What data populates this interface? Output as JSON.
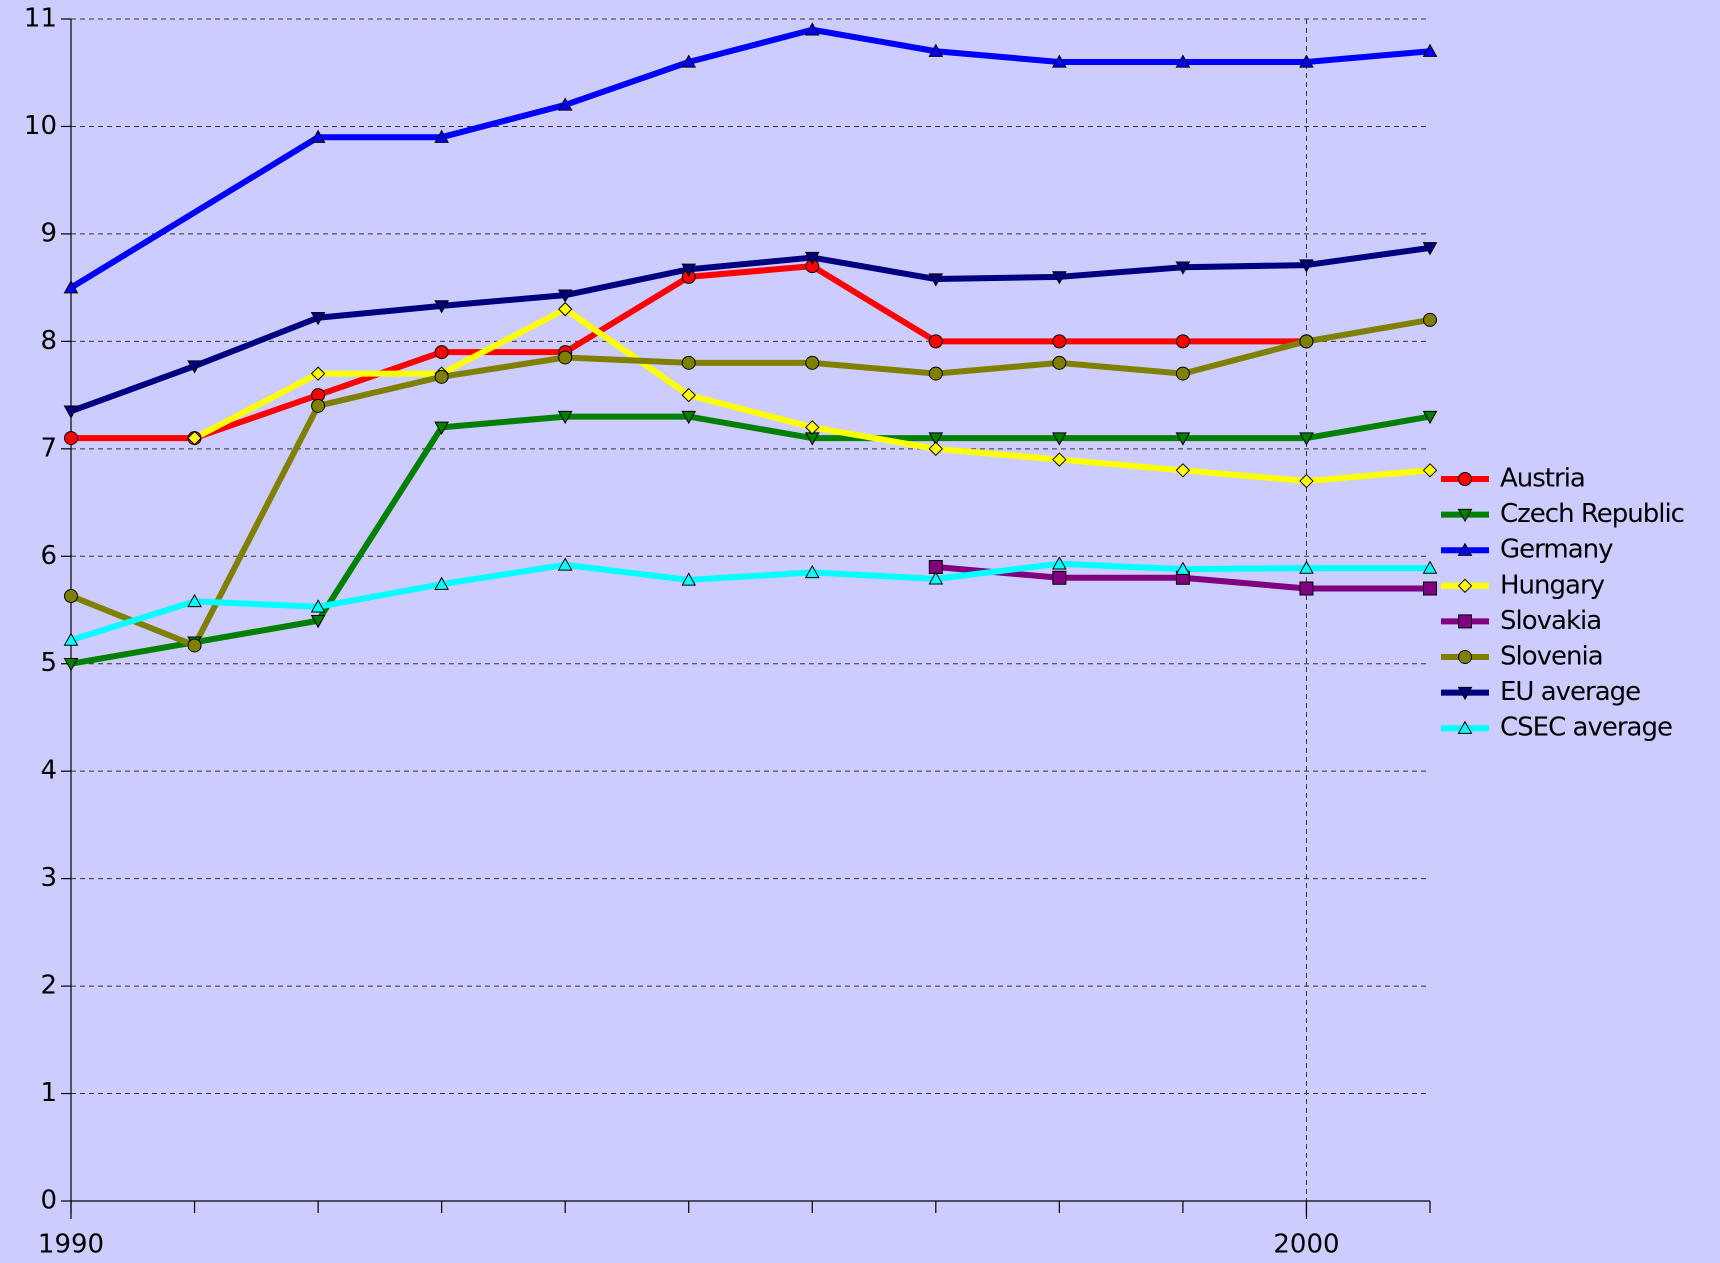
{
  "chart_data": {
    "type": "line",
    "x": [
      1990,
      1991,
      1992,
      1993,
      1994,
      1995,
      1996,
      1997,
      1998,
      1999,
      2000,
      2001
    ],
    "xlim": [
      1990,
      2001
    ],
    "xticks": [
      1990,
      2000
    ],
    "xminorticks": [
      1990,
      1991,
      1992,
      1993,
      1994,
      1995,
      1996,
      1997,
      1998,
      1999,
      2000,
      2001
    ],
    "ylim": [
      0,
      11
    ],
    "yticks": [
      0,
      1,
      2,
      3,
      4,
      5,
      6,
      7,
      8,
      9,
      10,
      11
    ],
    "grid": true,
    "legend": "right",
    "series": [
      {
        "name": "Austria",
        "color": "#ff0000",
        "marker": "circle",
        "values": [
          7.1,
          7.1,
          7.5,
          7.9,
          7.9,
          8.6,
          8.7,
          8.0,
          8.0,
          8.0,
          8.0,
          null
        ]
      },
      {
        "name": "Czech Republic",
        "color": "#008000",
        "marker": "down",
        "values": [
          5.0,
          5.2,
          5.4,
          7.2,
          7.3,
          7.3,
          7.1,
          7.1,
          7.1,
          7.1,
          7.1,
          7.3
        ]
      },
      {
        "name": "Germany",
        "color": "#0000ff",
        "marker": "up",
        "x": [
          1990,
          1992,
          1993,
          1994,
          1995,
          1996,
          1997,
          1998,
          1999,
          2000,
          2001
        ],
        "values": [
          8.5,
          9.9,
          9.9,
          10.2,
          10.6,
          10.9,
          10.7,
          10.6,
          10.6,
          10.6,
          10.7
        ]
      },
      {
        "name": "Hungary",
        "color": "#ffff00",
        "marker": "diamond",
        "values": [
          null,
          7.1,
          7.7,
          7.7,
          8.3,
          7.5,
          7.2,
          7.0,
          6.9,
          6.8,
          6.7,
          6.8
        ]
      },
      {
        "name": "Slovakia",
        "color": "#800080",
        "marker": "square",
        "values": [
          null,
          null,
          null,
          null,
          null,
          null,
          null,
          5.9,
          5.8,
          5.8,
          5.7,
          5.7
        ]
      },
      {
        "name": "Slovenia",
        "color": "#808000",
        "marker": "circle",
        "values": [
          5.63,
          5.17,
          7.4,
          7.67,
          7.85,
          7.8,
          7.8,
          7.7,
          7.8,
          7.7,
          8.0,
          8.2
        ]
      },
      {
        "name": "EU average",
        "color": "#000080",
        "marker": "down",
        "values": [
          7.35,
          7.77,
          8.22,
          8.33,
          8.43,
          8.67,
          8.78,
          8.58,
          8.6,
          8.69,
          8.71,
          8.87
        ]
      },
      {
        "name": "CSEC average",
        "color": "#00ffff",
        "marker": "up",
        "values": [
          5.22,
          5.58,
          5.53,
          5.74,
          5.92,
          5.78,
          5.85,
          5.79,
          5.93,
          5.88,
          5.89,
          5.89
        ]
      }
    ]
  }
}
